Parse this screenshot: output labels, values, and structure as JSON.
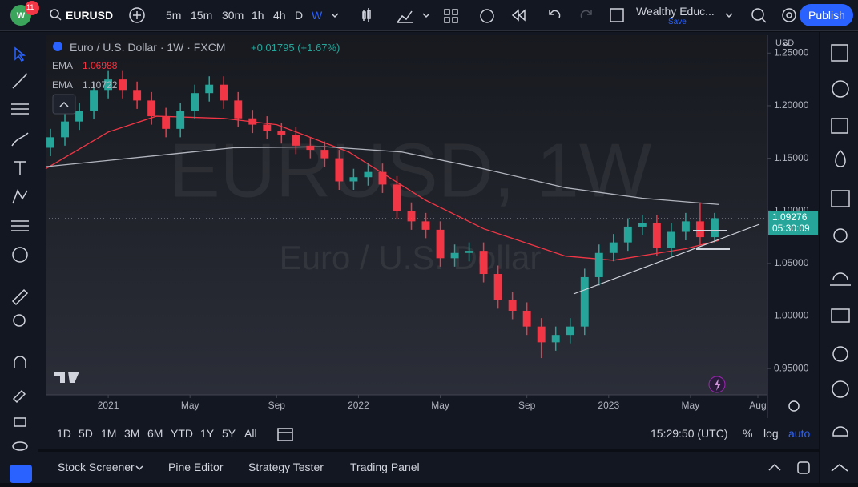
{
  "top_bar": {
    "notification_count": "11",
    "symbol": "EURUSD",
    "intervals": [
      "5m",
      "15m",
      "30m",
      "1h",
      "4h",
      "D",
      "W"
    ],
    "layout_name": "Wealthy Educ...",
    "save": "Save",
    "publish": "Publish"
  },
  "legend": {
    "title": "Euro / U.S. Dollar · 1W · FXCM",
    "change": "+0.01795 (+1.67%)"
  },
  "chart_data": {
    "type": "candlestick",
    "watermark": "EURUSD, 1W",
    "watermark_subtitle": "Euro / U.S. Dollar",
    "currency": "USD",
    "up_color": "#26a69a",
    "down_color": "#f23645",
    "x": [
      -12,
      -9,
      -6,
      -3,
      0,
      3,
      6,
      9,
      12,
      15,
      18,
      21,
      24,
      27,
      30,
      33,
      36,
      39,
      42,
      45,
      48,
      51,
      54,
      57,
      60,
      63,
      66,
      69,
      72,
      75,
      78,
      81,
      84,
      87,
      90,
      93,
      96,
      99,
      102,
      105,
      108,
      111,
      114,
      117,
      120,
      123,
      126
    ],
    "open": [
      1.16,
      1.17,
      1.185,
      1.195,
      1.215,
      1.225,
      1.215,
      1.205,
      1.19,
      1.178,
      1.195,
      1.212,
      1.22,
      1.205,
      1.188,
      1.182,
      1.176,
      1.172,
      1.162,
      1.158,
      1.15,
      1.128,
      1.132,
      1.137,
      1.125,
      1.1,
      1.09,
      1.082,
      1.055,
      1.06,
      1.062,
      1.04,
      1.015,
      1.005,
      0.99,
      0.975,
      0.982,
      0.99,
      1.037,
      1.06,
      1.07,
      1.085,
      1.088,
      1.065,
      1.08,
      1.09,
      1.075
    ],
    "high": [
      1.178,
      1.193,
      1.203,
      1.223,
      1.233,
      1.233,
      1.223,
      1.213,
      1.198,
      1.203,
      1.22,
      1.228,
      1.228,
      1.213,
      1.196,
      1.19,
      1.184,
      1.18,
      1.17,
      1.166,
      1.158,
      1.14,
      1.145,
      1.145,
      1.133,
      1.108,
      1.098,
      1.09,
      1.068,
      1.07,
      1.07,
      1.048,
      1.023,
      1.013,
      0.998,
      0.99,
      0.998,
      1.045,
      1.068,
      1.078,
      1.093,
      1.096,
      1.096,
      1.088,
      1.098,
      1.108,
      1.098
    ],
    "low": [
      1.152,
      1.162,
      1.177,
      1.187,
      1.207,
      1.207,
      1.197,
      1.182,
      1.17,
      1.17,
      1.187,
      1.204,
      1.197,
      1.18,
      1.174,
      1.168,
      1.164,
      1.154,
      1.15,
      1.142,
      1.12,
      1.12,
      1.124,
      1.117,
      1.092,
      1.082,
      1.074,
      1.047,
      1.047,
      1.052,
      1.032,
      1.007,
      0.997,
      0.982,
      0.96,
      0.967,
      0.974,
      0.982,
      1.029,
      1.052,
      1.062,
      1.077,
      1.057,
      1.057,
      1.072,
      1.067,
      1.07
    ],
    "close": [
      1.17,
      1.185,
      1.195,
      1.215,
      1.225,
      1.215,
      1.205,
      1.19,
      1.178,
      1.195,
      1.212,
      1.22,
      1.205,
      1.188,
      1.182,
      1.176,
      1.172,
      1.162,
      1.158,
      1.15,
      1.128,
      1.132,
      1.137,
      1.125,
      1.1,
      1.09,
      1.082,
      1.055,
      1.06,
      1.062,
      1.04,
      1.015,
      1.005,
      0.99,
      0.975,
      0.982,
      0.99,
      1.037,
      1.06,
      1.07,
      1.085,
      1.088,
      1.065,
      1.08,
      1.09,
      1.075,
      1.093
    ],
    "series": [
      {
        "name": "EMA",
        "color": "#f23645",
        "last": 1.06988,
        "x": [
          -13,
          0,
          10,
          24,
          35,
          50,
          66,
          78,
          95,
          105,
          120,
          127
        ],
        "values": [
          1.14,
          1.175,
          1.19,
          1.188,
          1.182,
          1.156,
          1.11,
          1.083,
          1.057,
          1.053,
          1.064,
          1.072
        ]
      },
      {
        "name": "EMA",
        "color": "#b2b5be",
        "last": 1.10722,
        "x": [
          -13,
          11,
          26,
          45,
          61,
          78,
          95,
          111,
          127
        ],
        "values": [
          1.142,
          1.153,
          1.16,
          1.161,
          1.156,
          1.14,
          1.122,
          1.112,
          1.106
        ]
      }
    ],
    "last_price": 1.09276,
    "countdown": "05:30:09",
    "xlim": [
      -13,
      137
    ],
    "ylim": [
      0.925,
      1.267
    ],
    "xticks": [
      {
        "value": 0,
        "label": "2021"
      },
      {
        "value": 17,
        "label": "May"
      },
      {
        "value": 35,
        "label": "Sep"
      },
      {
        "value": 52,
        "label": "2022"
      },
      {
        "value": 69,
        "label": "May"
      },
      {
        "value": 87,
        "label": "Sep"
      },
      {
        "value": 104,
        "label": "2023"
      },
      {
        "value": 121,
        "label": "May"
      },
      {
        "value": 135,
        "label": "Aug"
      }
    ],
    "yticks": [
      {
        "value": 0.95,
        "label": "0.95000"
      },
      {
        "value": 1.0,
        "label": "1.00000"
      },
      {
        "value": 1.05,
        "label": "1.05000"
      },
      {
        "value": 1.1,
        "label": "1.10000"
      },
      {
        "value": 1.15,
        "label": "1.15000"
      },
      {
        "value": 1.2,
        "label": "1.20000"
      },
      {
        "value": 1.25,
        "label": "1.25000"
      }
    ]
  },
  "range_bar": {
    "ranges": [
      "1D",
      "5D",
      "1M",
      "3M",
      "6M",
      "YTD",
      "1Y",
      "5Y",
      "All"
    ],
    "clock": "15:29:50 (UTC)",
    "percent": "%",
    "log": "log",
    "auto": "auto"
  },
  "bottom_tabs": [
    "Stock Screener",
    "Pine Editor",
    "Strategy Tester",
    "Trading Panel"
  ]
}
